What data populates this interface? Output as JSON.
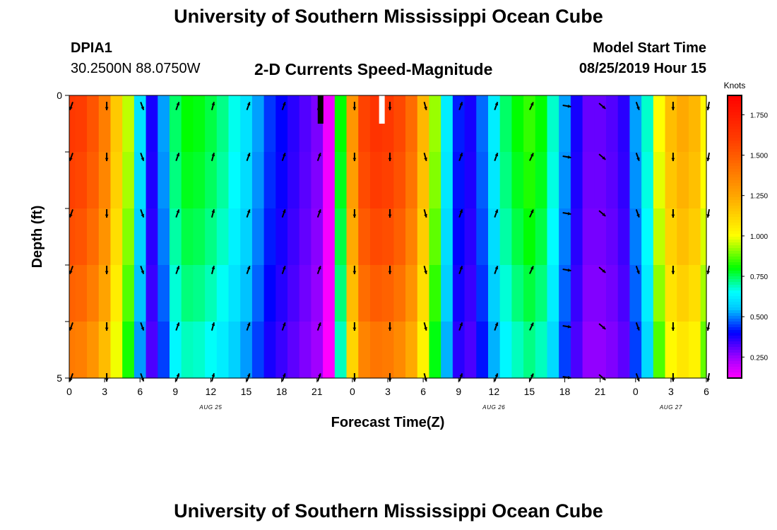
{
  "page": {
    "title_top": "University of Southern Mississippi Ocean Cube",
    "title_bottom": "University of Southern Mississippi Ocean Cube"
  },
  "header": {
    "station_id": "DPIA1",
    "station_coords": "30.2500N 88.0750W",
    "chart_title": "2-D Currents Speed-Magnitude",
    "model_start_label": "Model Start Time",
    "model_start_value": "08/25/2019 Hour 15"
  },
  "chart_data": {
    "type": "heatmap",
    "title": "2-D Currents Speed-Magnitude",
    "xlabel": "Forecast Time(Z)",
    "ylabel": "Depth (ft)",
    "ylim": [
      0,
      5
    ],
    "y_tick_labels": [
      "0",
      "5"
    ],
    "x_tick_labels": [
      "0",
      "3",
      "6",
      "9",
      "12",
      "15",
      "18",
      "21",
      "0",
      "3",
      "6",
      "9",
      "12",
      "15",
      "18",
      "21",
      "0",
      "3",
      "6"
    ],
    "x_range_hours": [
      0,
      54
    ],
    "date_labels": [
      {
        "text": "AUG 25",
        "hour": 12
      },
      {
        "text": "AUG 26",
        "hour": 36
      },
      {
        "text": "AUG 27",
        "hour": 51
      }
    ],
    "colorbar": {
      "unit": "Knots",
      "range": [
        0.12,
        1.87
      ],
      "ticks": [
        "1.750",
        "1.500",
        "1.250",
        "1.000",
        "0.750",
        "0.500",
        "0.250"
      ],
      "tick_values": [
        1.75,
        1.5,
        1.25,
        1.0,
        0.75,
        0.5,
        0.25
      ],
      "stops": [
        {
          "v": 0.12,
          "c": "#ff00ff"
        },
        {
          "v": 0.25,
          "c": "#9a00ff"
        },
        {
          "v": 0.4,
          "c": "#0000ff"
        },
        {
          "v": 0.55,
          "c": "#00c8ff"
        },
        {
          "v": 0.65,
          "c": "#00ffff"
        },
        {
          "v": 0.8,
          "c": "#00ff00"
        },
        {
          "v": 1.0,
          "c": "#ffff00"
        },
        {
          "v": 1.25,
          "c": "#ffa500"
        },
        {
          "v": 1.6,
          "c": "#ff3c00"
        },
        {
          "v": 1.87,
          "c": "#ff0000"
        }
      ]
    },
    "speed_by_hour": [
      1.62,
      1.6,
      1.52,
      1.38,
      1.15,
      0.95,
      0.6,
      0.38,
      0.52,
      0.74,
      0.8,
      0.79,
      0.76,
      0.72,
      0.66,
      0.6,
      0.52,
      0.44,
      0.4,
      0.36,
      0.32,
      0.28,
      0.14,
      0.8,
      1.3,
      1.58,
      1.64,
      1.62,
      1.56,
      1.44,
      1.2,
      0.92,
      0.62,
      0.42,
      0.38,
      0.48,
      0.62,
      0.74,
      0.8,
      0.84,
      0.8,
      0.68,
      0.52,
      0.38,
      0.3,
      0.3,
      0.32,
      0.36,
      0.52,
      0.68,
      1.0,
      1.18,
      1.24,
      1.2,
      1.02
    ],
    "depth_row_factors": [
      1.0,
      0.98,
      0.95,
      0.91,
      0.86
    ],
    "depth_rows_ft": [
      0,
      1,
      2,
      3,
      4
    ],
    "arrow_hours": [
      0,
      3,
      6,
      9,
      12,
      15,
      18,
      21,
      24,
      27,
      30,
      33,
      36,
      39,
      42,
      45,
      48,
      51,
      54
    ],
    "arrow_directions_deg": [
      200,
      180,
      160,
      20,
      15,
      20,
      20,
      20,
      180,
      180,
      165,
      20,
      20,
      25,
      100,
      130,
      160,
      180,
      190
    ],
    "markers": [
      {
        "hour": 21.3,
        "color": "#000000"
      },
      {
        "hour": 26.5,
        "color": "#ffffff"
      }
    ]
  }
}
